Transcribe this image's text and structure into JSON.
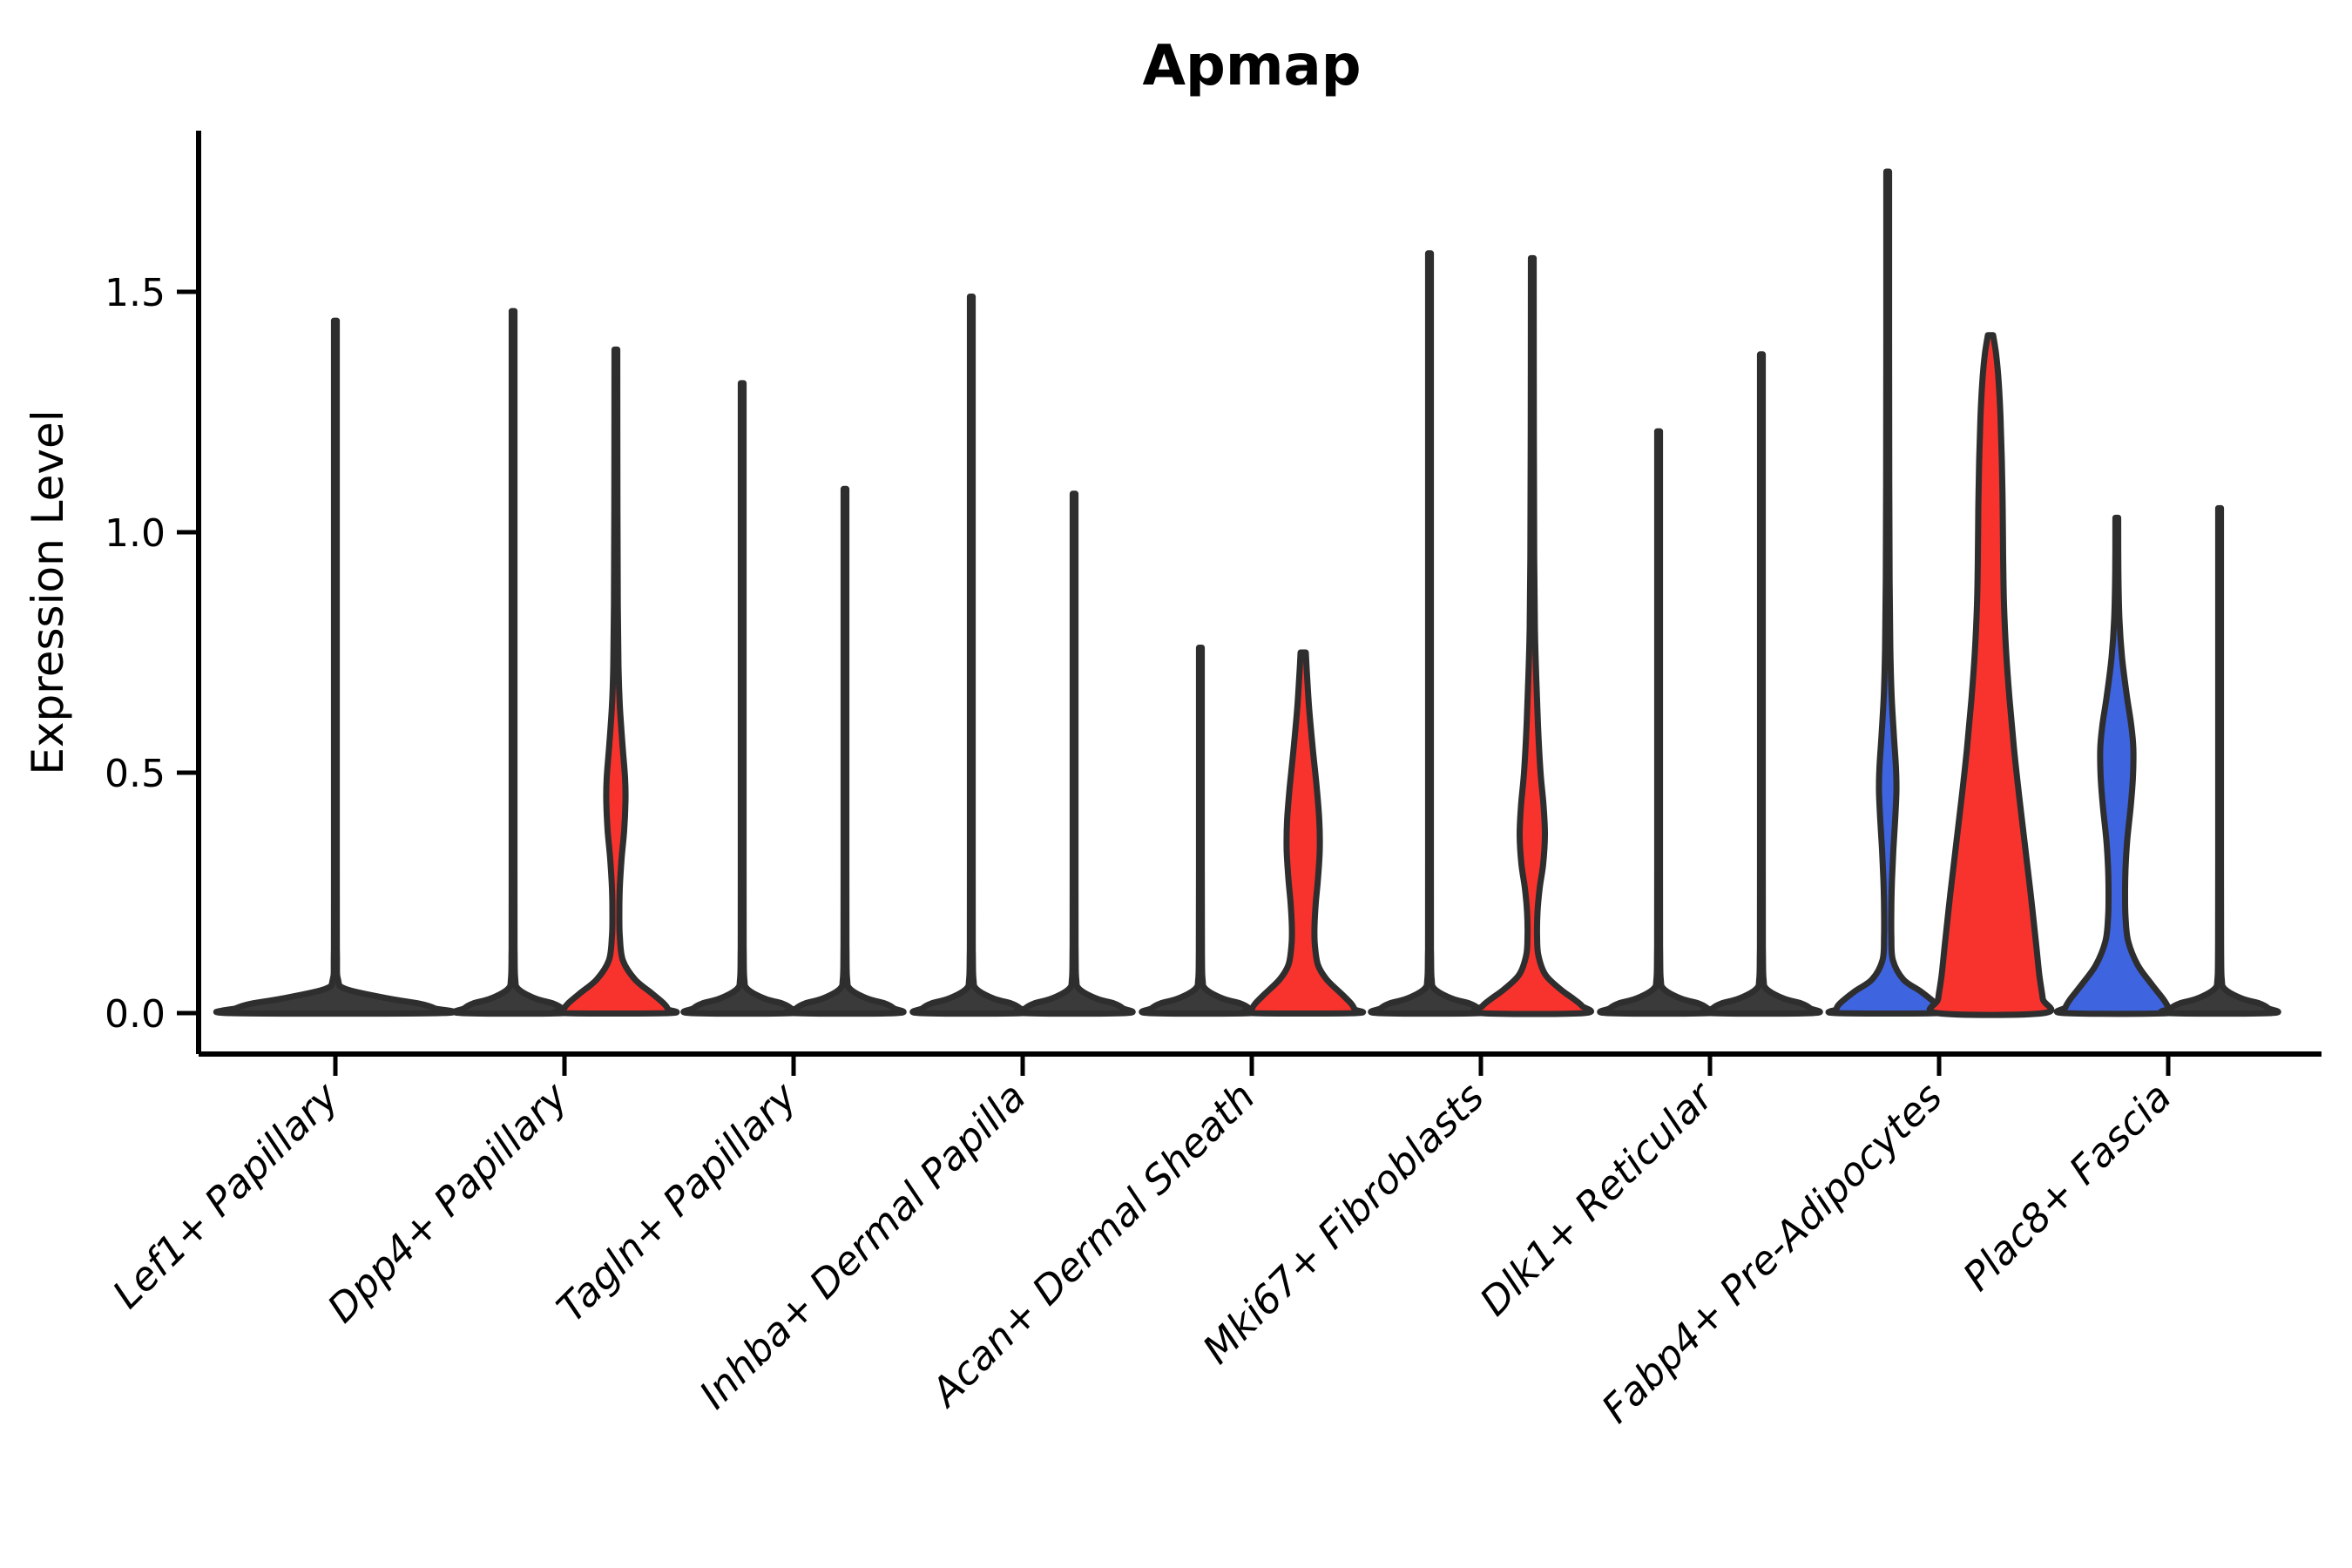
{
  "style": {
    "red": "#f8332e",
    "blue": "#3e64e0",
    "dark_outline": "#2e2e2e",
    "axis_color": "#000000",
    "background": "#ffffff"
  },
  "chart_data": {
    "type": "violin",
    "title": "Apmap",
    "ylabel": "Expression Level",
    "xlabel": "",
    "legend": "none",
    "grid": false,
    "yticks": [
      "0.0",
      "0.5",
      "1.0",
      "1.5"
    ],
    "ylim": [
      -0.09,
      1.84
    ],
    "categories": [
      "Lef1+ Papillary",
      "Dpp4+ Papillary",
      "Tagln+ Papillary",
      "Inhba+ Dermal Papilla",
      "Acan+ Dermal Sheath",
      "Mki67+ Fibroblasts",
      "Dlk1+ Reticular",
      "Fabp4+ Pre-Adipocytes",
      "Plac8+ Fascia"
    ],
    "violins": [
      {
        "category": "Lef1+ Papillary",
        "side": "center",
        "fill": "#3a3a3a",
        "max_expression": 1.44,
        "profile": [
          [
            1.44,
            1.6
          ],
          [
            0.3,
            1.6
          ],
          [
            0.12,
            1.8
          ],
          [
            0.07,
            3
          ],
          [
            0.05,
            12
          ],
          [
            0.03,
            62
          ],
          [
            0.02,
            96
          ],
          [
            0.01,
            114
          ],
          [
            0,
            120
          ]
        ]
      },
      {
        "category": "Dpp4+ Papillary",
        "side": "left",
        "fill": "#3a3a3a",
        "max_expression": 1.46,
        "profile": [
          [
            1.46,
            1.6
          ],
          [
            0.3,
            1.6
          ],
          [
            0.12,
            1.8
          ],
          [
            0.07,
            2.5
          ],
          [
            0.05,
            6
          ],
          [
            0.03,
            26
          ],
          [
            0.02,
            46
          ],
          [
            0.01,
            56
          ],
          [
            0,
            59
          ]
        ]
      },
      {
        "category": "Dpp4+ Papillary",
        "side": "right",
        "fill": "#f8332e",
        "max_expression": 1.38,
        "profile": [
          [
            1.38,
            1.6
          ],
          [
            1.05,
            1.8
          ],
          [
            0.85,
            2.2
          ],
          [
            0.72,
            3
          ],
          [
            0.64,
            4.5
          ],
          [
            0.56,
            7.5
          ],
          [
            0.49,
            10.5
          ],
          [
            0.44,
            11
          ],
          [
            0.38,
            9.5
          ],
          [
            0.32,
            6.5
          ],
          [
            0.26,
            4.5
          ],
          [
            0.21,
            4
          ],
          [
            0.16,
            4.5
          ],
          [
            0.11,
            8
          ],
          [
            0.07,
            22
          ],
          [
            0.04,
            42
          ],
          [
            0.02,
            55
          ],
          [
            0.008,
            60
          ],
          [
            0,
            61
          ]
        ]
      },
      {
        "category": "Tagln+ Papillary",
        "side": "left",
        "fill": "#3a3a3a",
        "max_expression": 1.31,
        "profile": [
          [
            1.31,
            1.6
          ],
          [
            0.3,
            1.6
          ],
          [
            0.12,
            1.8
          ],
          [
            0.07,
            2.5
          ],
          [
            0.05,
            6
          ],
          [
            0.03,
            26
          ],
          [
            0.02,
            46
          ],
          [
            0.01,
            56
          ],
          [
            0,
            59
          ]
        ]
      },
      {
        "category": "Tagln+ Papillary",
        "side": "right",
        "fill": "#3a3a3a",
        "max_expression": 1.09,
        "profile": [
          [
            1.09,
            1.6
          ],
          [
            0.3,
            1.6
          ],
          [
            0.12,
            1.8
          ],
          [
            0.07,
            2.5
          ],
          [
            0.05,
            6
          ],
          [
            0.03,
            26
          ],
          [
            0.02,
            46
          ],
          [
            0.01,
            56
          ],
          [
            0,
            59
          ]
        ]
      },
      {
        "category": "Inhba+ Dermal Papilla",
        "side": "left",
        "fill": "#3a3a3a",
        "max_expression": 1.49,
        "profile": [
          [
            1.49,
            1.6
          ],
          [
            0.3,
            1.6
          ],
          [
            0.12,
            1.8
          ],
          [
            0.07,
            2.5
          ],
          [
            0.05,
            6
          ],
          [
            0.03,
            26
          ],
          [
            0.02,
            46
          ],
          [
            0.01,
            56
          ],
          [
            0,
            59
          ]
        ]
      },
      {
        "category": "Inhba+ Dermal Papilla",
        "side": "right",
        "fill": "#3a3a3a",
        "max_expression": 1.08,
        "profile": [
          [
            1.08,
            1.6
          ],
          [
            0.3,
            1.6
          ],
          [
            0.12,
            1.8
          ],
          [
            0.07,
            2.5
          ],
          [
            0.05,
            6
          ],
          [
            0.03,
            26
          ],
          [
            0.02,
            46
          ],
          [
            0.01,
            56
          ],
          [
            0,
            59
          ]
        ]
      },
      {
        "category": "Acan+ Dermal Sheath",
        "side": "left",
        "fill": "#3a3a3a",
        "max_expression": 0.76,
        "profile": [
          [
            0.76,
            1.6
          ],
          [
            0.3,
            1.6
          ],
          [
            0.12,
            1.8
          ],
          [
            0.07,
            2.5
          ],
          [
            0.05,
            6
          ],
          [
            0.03,
            26
          ],
          [
            0.02,
            46
          ],
          [
            0.01,
            56
          ],
          [
            0,
            59
          ]
        ]
      },
      {
        "category": "Acan+ Dermal Sheath",
        "side": "right",
        "fill": "#f8332e",
        "max_expression": 0.75,
        "profile": [
          [
            0.75,
            3
          ],
          [
            0.7,
            4.5
          ],
          [
            0.63,
            7
          ],
          [
            0.55,
            11
          ],
          [
            0.47,
            15.5
          ],
          [
            0.4,
            18.5
          ],
          [
            0.34,
            19
          ],
          [
            0.28,
            17
          ],
          [
            0.23,
            14.5
          ],
          [
            0.18,
            13
          ],
          [
            0.14,
            13.5
          ],
          [
            0.1,
            17
          ],
          [
            0.07,
            27
          ],
          [
            0.04,
            44
          ],
          [
            0.02,
            55
          ],
          [
            0.008,
            59
          ],
          [
            0,
            60
          ]
        ]
      },
      {
        "category": "Mki67+ Fibroblasts",
        "side": "left",
        "fill": "#3a3a3a",
        "max_expression": 1.58,
        "profile": [
          [
            1.58,
            1.6
          ],
          [
            0.3,
            1.6
          ],
          [
            0.12,
            1.8
          ],
          [
            0.07,
            2.5
          ],
          [
            0.05,
            6
          ],
          [
            0.03,
            26
          ],
          [
            0.02,
            46
          ],
          [
            0.01,
            56
          ],
          [
            0,
            59
          ]
        ]
      },
      {
        "category": "Mki67+ Fibroblasts",
        "side": "right",
        "fill": "#f8332e",
        "max_expression": 1.57,
        "profile": [
          [
            1.57,
            1.6
          ],
          [
            1.2,
            1.8
          ],
          [
            0.95,
            2.2
          ],
          [
            0.8,
            3
          ],
          [
            0.7,
            4.5
          ],
          [
            0.6,
            6.5
          ],
          [
            0.5,
            9.5
          ],
          [
            0.43,
            13
          ],
          [
            0.37,
            14.5
          ],
          [
            0.31,
            12.5
          ],
          [
            0.26,
            8.5
          ],
          [
            0.21,
            6
          ],
          [
            0.16,
            5.5
          ],
          [
            0.12,
            7
          ],
          [
            0.08,
            15
          ],
          [
            0.05,
            32
          ],
          [
            0.03,
            47
          ],
          [
            0.015,
            57
          ],
          [
            0,
            59
          ]
        ]
      },
      {
        "category": "Dlk1+ Reticular",
        "side": "left",
        "fill": "#3a3a3a",
        "max_expression": 1.21,
        "profile": [
          [
            1.21,
            1.6
          ],
          [
            0.3,
            1.6
          ],
          [
            0.12,
            1.8
          ],
          [
            0.07,
            2.5
          ],
          [
            0.05,
            6
          ],
          [
            0.03,
            26
          ],
          [
            0.02,
            46
          ],
          [
            0.01,
            56
          ],
          [
            0,
            59
          ]
        ]
      },
      {
        "category": "Dlk1+ Reticular",
        "side": "right",
        "fill": "#3a3a3a",
        "max_expression": 1.37,
        "profile": [
          [
            1.37,
            1.6
          ],
          [
            0.3,
            1.6
          ],
          [
            0.12,
            1.8
          ],
          [
            0.07,
            2.5
          ],
          [
            0.05,
            6
          ],
          [
            0.03,
            26
          ],
          [
            0.02,
            46
          ],
          [
            0.01,
            56
          ],
          [
            0,
            59
          ]
        ]
      },
      {
        "category": "Fabp4+ Pre-Adipocytes",
        "side": "left",
        "fill": "#3e64e0",
        "max_expression": 1.75,
        "profile": [
          [
            1.75,
            1.6
          ],
          [
            1.4,
            1.6
          ],
          [
            1.1,
            1.8
          ],
          [
            0.9,
            2.2
          ],
          [
            0.76,
            3
          ],
          [
            0.66,
            4.5
          ],
          [
            0.58,
            7
          ],
          [
            0.51,
            9.5
          ],
          [
            0.46,
            10
          ],
          [
            0.4,
            8.5
          ],
          [
            0.34,
            6.5
          ],
          [
            0.28,
            5
          ],
          [
            0.22,
            4.2
          ],
          [
            0.16,
            4.2
          ],
          [
            0.11,
            6
          ],
          [
            0.07,
            18
          ],
          [
            0.045,
            38
          ],
          [
            0.02,
            55
          ],
          [
            0.008,
            59
          ],
          [
            0,
            59
          ]
        ]
      },
      {
        "category": "Fabp4+ Pre-Adipocytes",
        "side": "right",
        "fill": "#f8332e",
        "max_expression": 1.41,
        "profile": [
          [
            1.41,
            3
          ],
          [
            1.37,
            6.5
          ],
          [
            1.31,
            9.5
          ],
          [
            1.24,
            11.5
          ],
          [
            1.15,
            13
          ],
          [
            1.05,
            14
          ],
          [
            0.95,
            14.5
          ],
          [
            0.85,
            15.5
          ],
          [
            0.75,
            18
          ],
          [
            0.65,
            22
          ],
          [
            0.55,
            27
          ],
          [
            0.45,
            33
          ],
          [
            0.35,
            39.5
          ],
          [
            0.25,
            46
          ],
          [
            0.15,
            52
          ],
          [
            0.08,
            56
          ],
          [
            0.03,
            60
          ],
          [
            0,
            61
          ]
        ]
      },
      {
        "category": "Plac8+ Fascia",
        "side": "left",
        "fill": "#3e64e0",
        "max_expression": 1.03,
        "profile": [
          [
            1.03,
            1.6
          ],
          [
            0.92,
            1.8
          ],
          [
            0.82,
            3
          ],
          [
            0.74,
            6
          ],
          [
            0.66,
            11.5
          ],
          [
            0.6,
            16.5
          ],
          [
            0.55,
            19
          ],
          [
            0.49,
            18.5
          ],
          [
            0.43,
            16
          ],
          [
            0.36,
            12
          ],
          [
            0.3,
            10
          ],
          [
            0.25,
            9.5
          ],
          [
            0.2,
            10
          ],
          [
            0.15,
            13
          ],
          [
            0.1,
            24
          ],
          [
            0.06,
            40
          ],
          [
            0.03,
            53
          ],
          [
            0.012,
            59
          ],
          [
            0,
            60
          ]
        ]
      },
      {
        "category": "Plac8+ Fascia",
        "side": "right",
        "fill": "#3a3a3a",
        "max_expression": 1.05,
        "profile": [
          [
            1.05,
            1.6
          ],
          [
            0.3,
            1.6
          ],
          [
            0.12,
            1.8
          ],
          [
            0.07,
            2.5
          ],
          [
            0.05,
            6
          ],
          [
            0.03,
            26
          ],
          [
            0.02,
            46
          ],
          [
            0.01,
            56
          ],
          [
            0,
            59
          ]
        ]
      }
    ]
  }
}
